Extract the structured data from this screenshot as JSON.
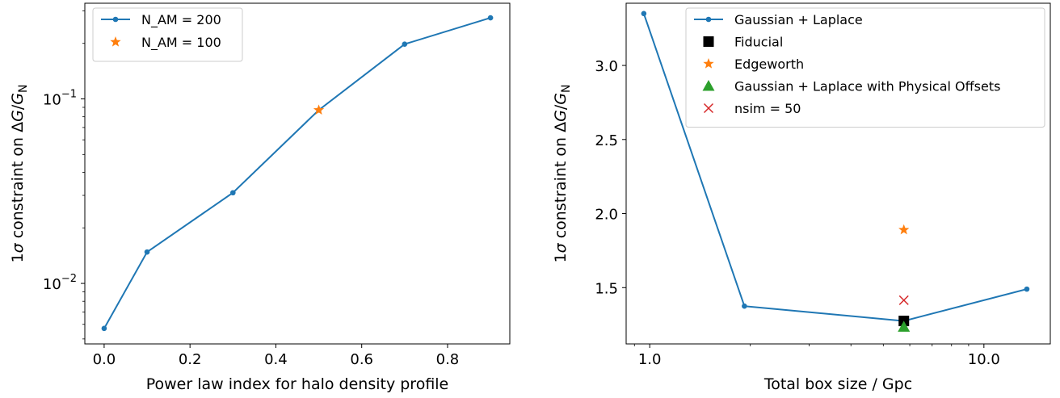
{
  "chart_data": [
    {
      "type": "line",
      "title": "",
      "xlabel": "Power law index for halo density profile",
      "ylabel_prefix": "1",
      "ylabel_sigma": "σ",
      "ylabel_mid": " constraint on Δ",
      "ylabel_G": "G",
      "ylabel_slash": "/",
      "ylabel_GN": "G",
      "ylabel_sub": "N",
      "yscale": "log",
      "xlim": [
        -0.045,
        0.945
      ],
      "ylim": [
        0.0047,
        0.33
      ],
      "xticks": [
        0.0,
        0.2,
        0.4,
        0.6,
        0.8
      ],
      "xtick_labels": [
        "0.0",
        "0.2",
        "0.4",
        "0.6",
        "0.8"
      ],
      "yticks_major": [
        0.01,
        0.1
      ],
      "ytick_base": "10",
      "ytick_exponents": [
        "−2",
        "−1"
      ],
      "legend_position": "top-left",
      "series": [
        {
          "name": "N_AM = 200",
          "color": "#1f77b4",
          "marker": "dot",
          "line": true,
          "x": [
            0.0,
            0.1,
            0.3,
            0.5,
            0.7,
            0.9
          ],
          "y": [
            0.0057,
            0.0148,
            0.031,
            0.087,
            0.198,
            0.275
          ]
        },
        {
          "name": "N_AM = 100",
          "color": "#ff7f0e",
          "marker": "star",
          "line": false,
          "x": [
            0.5
          ],
          "y": [
            0.087
          ]
        }
      ]
    },
    {
      "type": "line",
      "title": "",
      "xlabel": "Total box size / Gpc",
      "ylabel_prefix": "1",
      "ylabel_sigma": "σ",
      "ylabel_mid": " constraint on Δ",
      "ylabel_G": "G",
      "ylabel_slash": "/",
      "ylabel_GN": "G",
      "ylabel_sub": "N",
      "xscale": "log",
      "xlim": [
        0.85,
        15.8
      ],
      "ylim": [
        1.12,
        3.42
      ],
      "xticks": [
        1.0,
        10.0
      ],
      "xtick_labels": [
        "1.0",
        "10.0"
      ],
      "yticks": [
        1.5,
        2.0,
        2.5,
        3.0
      ],
      "ytick_labels": [
        "1.5",
        "2.0",
        "2.5",
        "3.0"
      ],
      "legend_position": "top-right",
      "series": [
        {
          "name": "Gaussian + Laplace",
          "color": "#1f77b4",
          "marker": "dot",
          "line": true,
          "x": [
            0.96,
            1.92,
            5.76,
            13.44
          ],
          "y": [
            3.35,
            1.375,
            1.275,
            1.49
          ]
        },
        {
          "name": "Fiducial",
          "color": "#000000",
          "marker": "square",
          "line": false,
          "x": [
            5.76
          ],
          "y": [
            1.275
          ]
        },
        {
          "name": "Edgeworth",
          "color": "#ff7f0e",
          "marker": "star",
          "line": false,
          "x": [
            5.76
          ],
          "y": [
            1.89
          ]
        },
        {
          "name": "Gaussian + Laplace with Physical Offsets",
          "color": "#2ca02c",
          "marker": "triangle",
          "line": false,
          "x": [
            5.76
          ],
          "y": [
            1.235
          ]
        },
        {
          "name": "nsim = 50",
          "color": "#d62728",
          "marker": "x",
          "line": false,
          "x": [
            5.76
          ],
          "y": [
            1.415
          ]
        }
      ]
    }
  ]
}
